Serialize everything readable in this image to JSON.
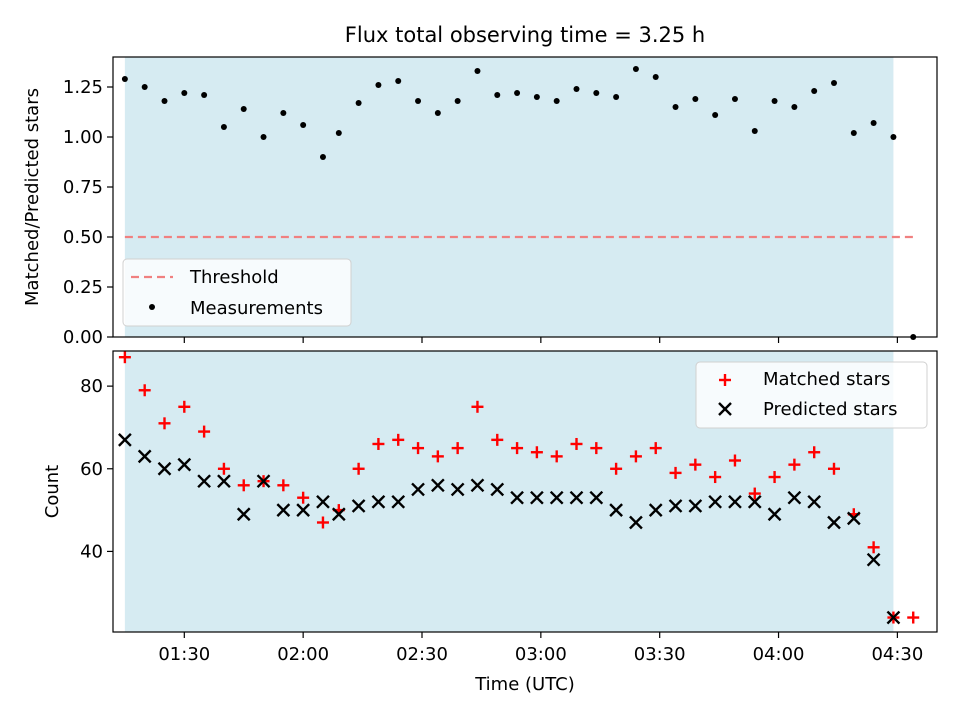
{
  "chart_data": [
    {
      "type": "scatter",
      "title": "Flux total observing time = 3.25 h",
      "xlabel": "",
      "ylabel": "Matched/Predicted stars",
      "ylim": [
        0,
        1.4
      ],
      "y_ticks": [
        "0.00",
        "0.25",
        "0.50",
        "0.75",
        "1.00",
        "1.25"
      ],
      "y_tick_values": [
        0,
        0.25,
        0.5,
        0.75,
        1.0,
        1.25
      ],
      "x_tick_labels_shown": false,
      "shaded_interval": {
        "start": "01:15",
        "end": "04:29",
        "color": "#add8e6"
      },
      "threshold": {
        "label": "Threshold",
        "value": 0.5,
        "color": "#f08080",
        "style": "dashed",
        "start": "01:15",
        "end": "04:34"
      },
      "legend_position": "lower-left",
      "series": [
        {
          "name": "Measurements",
          "color": "#000000",
          "marker": "dot",
          "x": [
            "01:15",
            "01:20",
            "01:25",
            "01:30",
            "01:35",
            "01:40",
            "01:45",
            "01:50",
            "01:55",
            "02:00",
            "02:05",
            "02:09",
            "02:14",
            "02:19",
            "02:24",
            "02:29",
            "02:34",
            "02:39",
            "02:44",
            "02:49",
            "02:54",
            "02:59",
            "03:04",
            "03:09",
            "03:14",
            "03:19",
            "03:24",
            "03:29",
            "03:34",
            "03:39",
            "03:44",
            "03:49",
            "03:54",
            "03:59",
            "04:04",
            "04:09",
            "04:14",
            "04:19",
            "04:24",
            "04:29",
            "04:34"
          ],
          "y": [
            1.29,
            1.25,
            1.18,
            1.22,
            1.21,
            1.05,
            1.14,
            1.0,
            1.12,
            1.06,
            0.9,
            1.02,
            1.17,
            1.26,
            1.28,
            1.18,
            1.12,
            1.18,
            1.33,
            1.21,
            1.22,
            1.2,
            1.18,
            1.24,
            1.22,
            1.2,
            1.34,
            1.3,
            1.15,
            1.19,
            1.11,
            1.19,
            1.03,
            1.18,
            1.15,
            1.23,
            1.27,
            1.02,
            1.07,
            1.0,
            0.0
          ]
        }
      ]
    },
    {
      "type": "scatter",
      "title": "",
      "xlabel": "Time (UTC)",
      "ylabel": "Count",
      "ylim": [
        20.5,
        88.5
      ],
      "xlim": [
        "01:12",
        "04:40"
      ],
      "y_ticks": [
        "40",
        "60",
        "80"
      ],
      "y_tick_values": [
        40,
        60,
        80
      ],
      "x_ticks": [
        "01:30",
        "02:00",
        "02:30",
        "03:00",
        "03:30",
        "04:00",
        "04:30"
      ],
      "shaded_interval": {
        "start": "01:15",
        "end": "04:29",
        "color": "#add8e6"
      },
      "legend_position": "upper-right",
      "series": [
        {
          "name": "Matched stars",
          "color": "#ff0000",
          "marker": "plus",
          "x": [
            "01:15",
            "01:20",
            "01:25",
            "01:30",
            "01:35",
            "01:40",
            "01:45",
            "01:50",
            "01:55",
            "02:00",
            "02:05",
            "02:09",
            "02:14",
            "02:19",
            "02:24",
            "02:29",
            "02:34",
            "02:39",
            "02:44",
            "02:49",
            "02:54",
            "02:59",
            "03:04",
            "03:09",
            "03:14",
            "03:19",
            "03:24",
            "03:29",
            "03:34",
            "03:39",
            "03:44",
            "03:49",
            "03:54",
            "03:59",
            "04:04",
            "04:09",
            "04:14",
            "04:19",
            "04:24",
            "04:29",
            "04:34"
          ],
          "y": [
            87,
            79,
            71,
            75,
            69,
            60,
            56,
            57,
            56,
            53,
            47,
            50,
            60,
            66,
            67,
            65,
            63,
            65,
            75,
            67,
            65,
            64,
            63,
            66,
            65,
            60,
            63,
            65,
            59,
            61,
            58,
            62,
            54,
            58,
            61,
            64,
            60,
            49,
            41,
            24,
            24
          ]
        },
        {
          "name": "Predicted stars",
          "color": "#000000",
          "marker": "x",
          "x": [
            "01:15",
            "01:20",
            "01:25",
            "01:30",
            "01:35",
            "01:40",
            "01:45",
            "01:50",
            "01:55",
            "02:00",
            "02:05",
            "02:09",
            "02:14",
            "02:19",
            "02:24",
            "02:29",
            "02:34",
            "02:39",
            "02:44",
            "02:49",
            "02:54",
            "02:59",
            "03:04",
            "03:09",
            "03:14",
            "03:19",
            "03:24",
            "03:29",
            "03:34",
            "03:39",
            "03:44",
            "03:49",
            "03:54",
            "03:59",
            "04:04",
            "04:09",
            "04:14",
            "04:19",
            "04:24",
            "04:29"
          ],
          "y": [
            67,
            63,
            60,
            61,
            57,
            57,
            49,
            57,
            50,
            50,
            52,
            49,
            51,
            52,
            52,
            55,
            56,
            55,
            56,
            55,
            53,
            53,
            53,
            53,
            53,
            50,
            47,
            50,
            51,
            51,
            52,
            52,
            52,
            49,
            53,
            52,
            47,
            48,
            38,
            24
          ]
        }
      ]
    }
  ]
}
